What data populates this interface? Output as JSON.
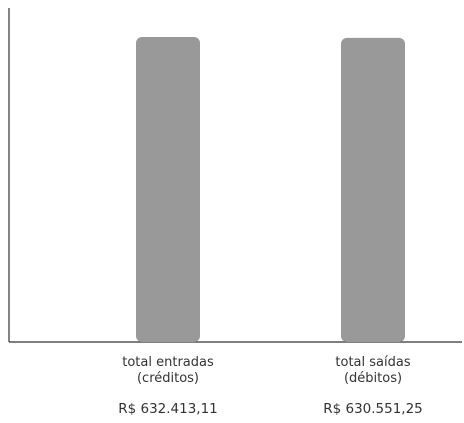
{
  "chart_data": {
    "type": "bar",
    "categories": [
      {
        "line1": "total entradas",
        "line2": "(créditos)",
        "value_label": "R$ 632.413,11"
      },
      {
        "line1": "total saídas",
        "line2": "(débitos)",
        "value_label": "R$ 630.551,25"
      }
    ],
    "values": [
      632413.11,
      630551.25
    ],
    "bar_color": "#999999",
    "axis_color": "#333333",
    "grid": false,
    "legend": "none"
  }
}
